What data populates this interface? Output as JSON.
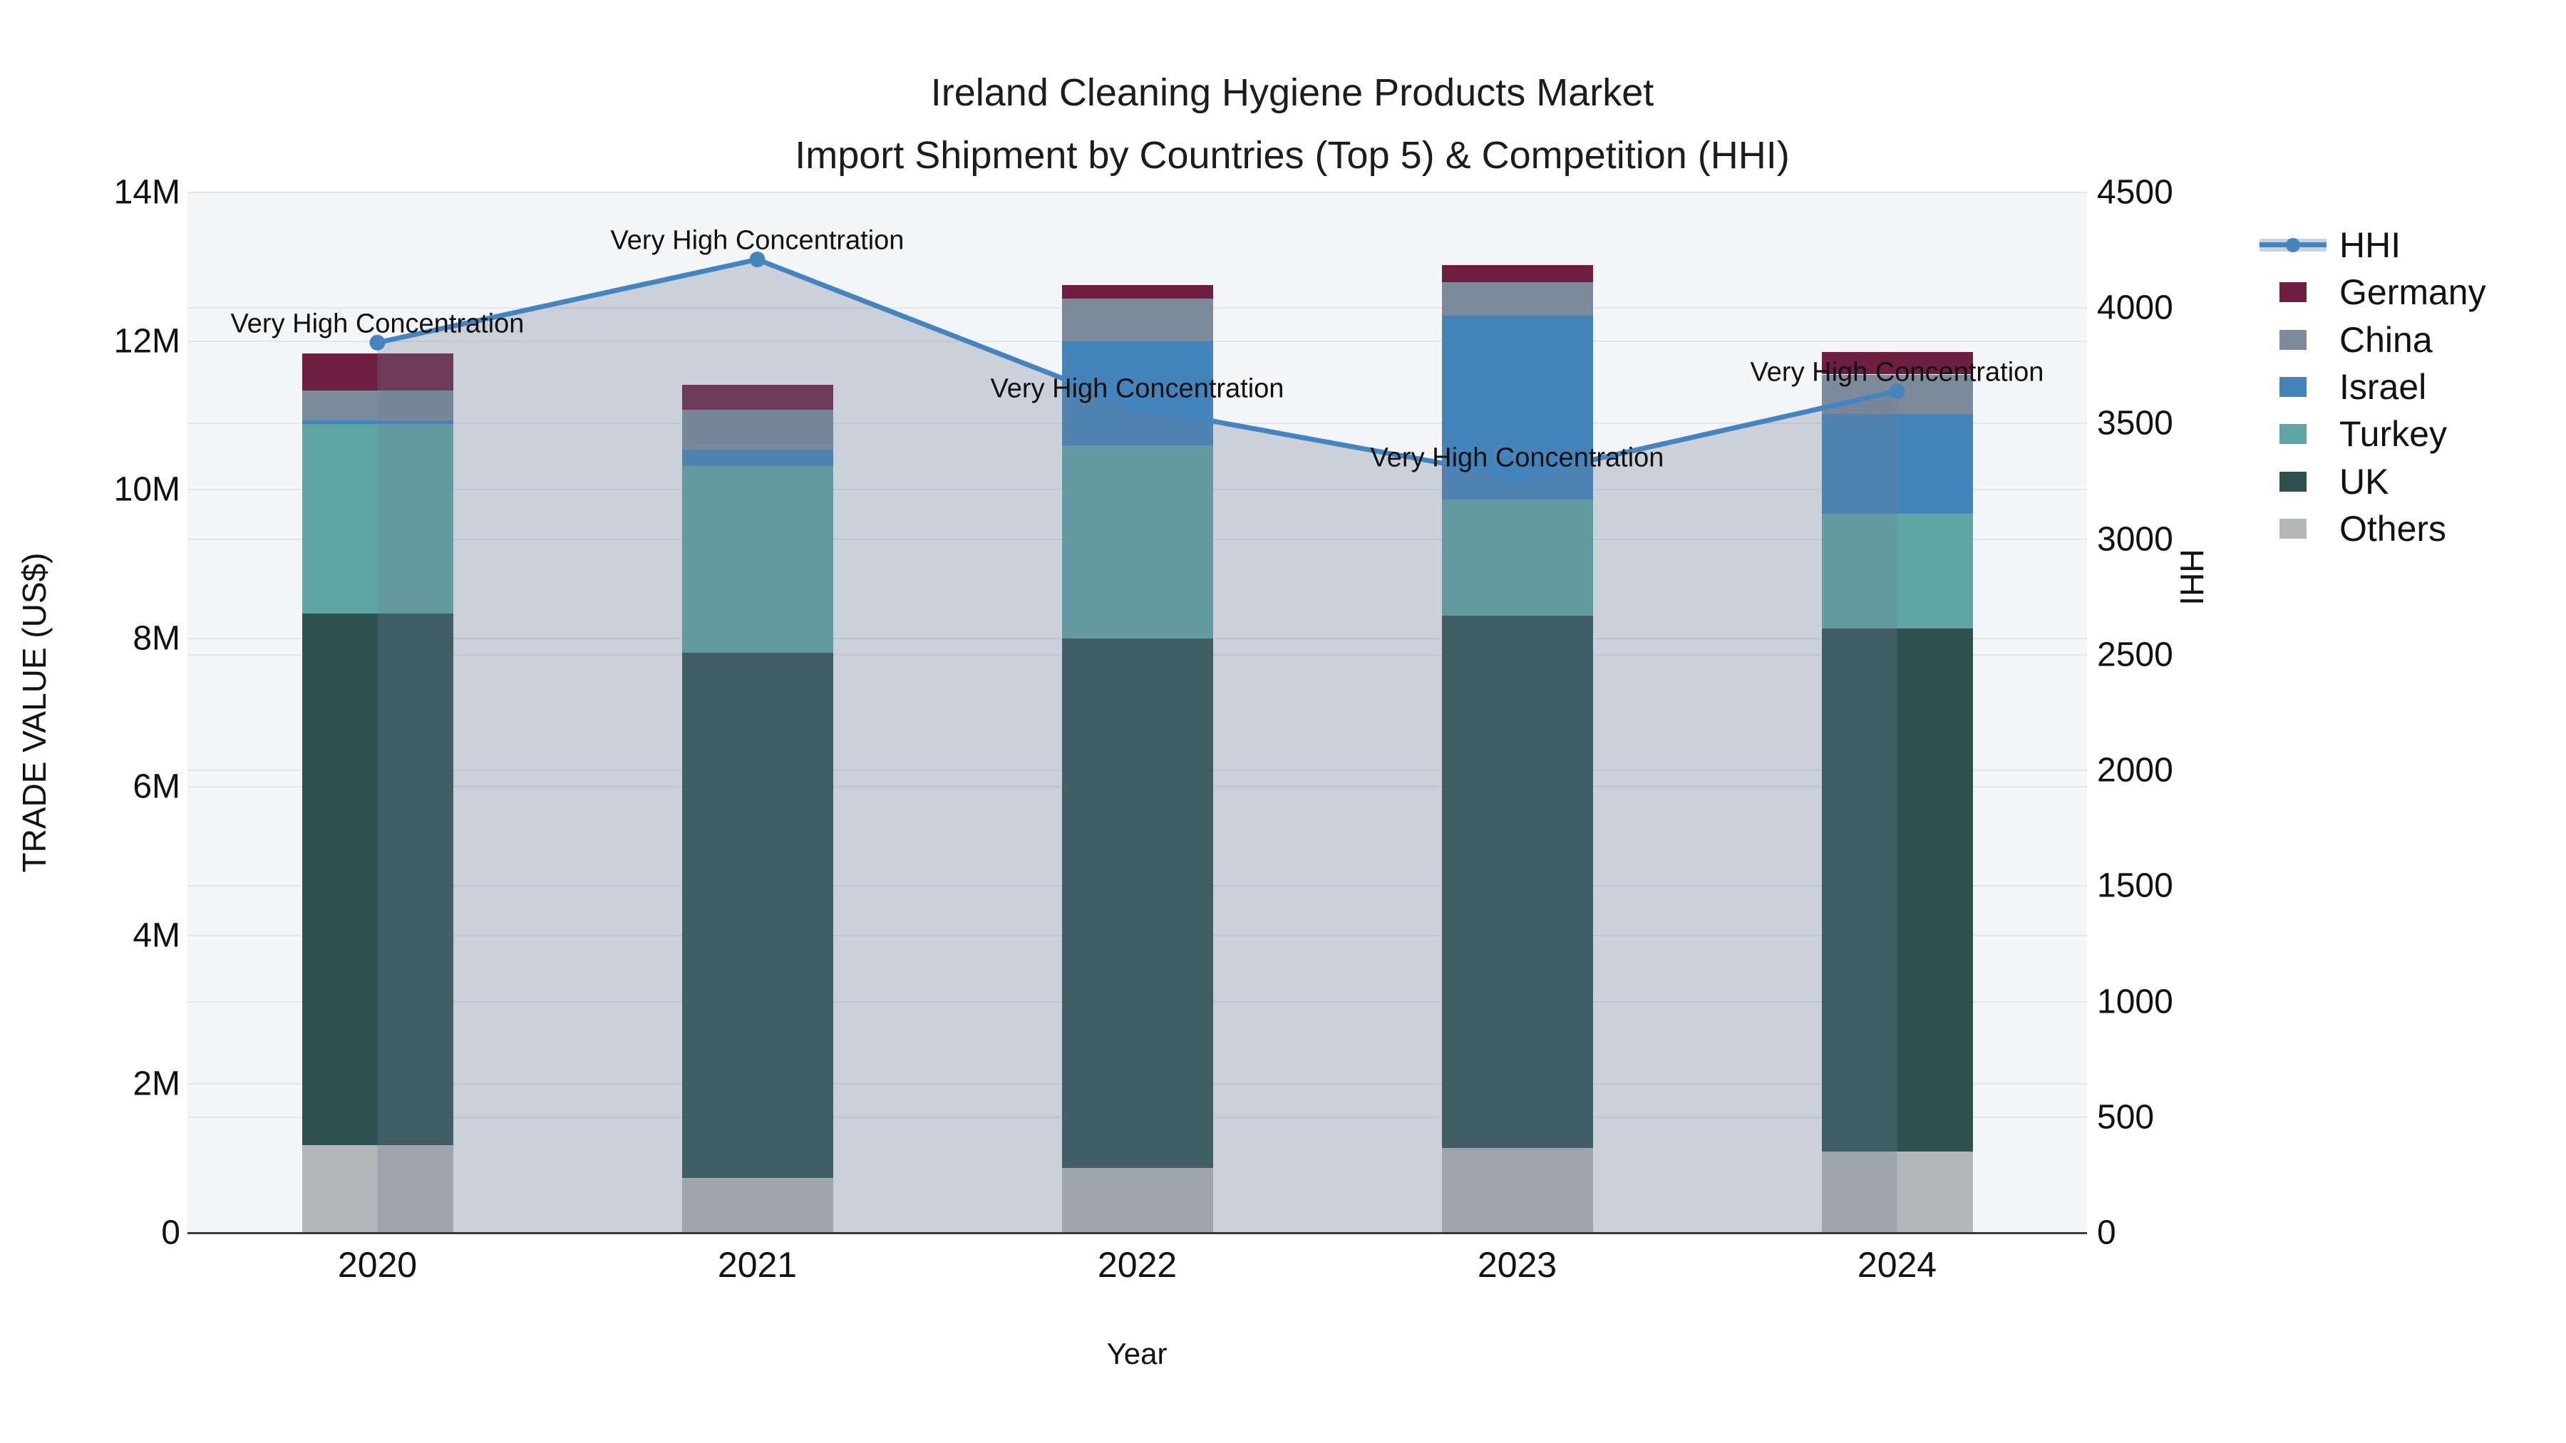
{
  "title": {
    "line1": "Ireland Cleaning Hygiene Products Market",
    "line2": "Import Shipment by Countries (Top 5) & Competition (HHI)"
  },
  "axes": {
    "x": {
      "title": "Year",
      "categories": [
        "2020",
        "2021",
        "2022",
        "2023",
        "2024"
      ]
    },
    "y_left": {
      "title": "TRADE VALUE (US$)",
      "tick_labels": [
        "0",
        "2M",
        "4M",
        "6M",
        "8M",
        "10M",
        "12M",
        "14M"
      ],
      "range_millions": [
        0,
        14
      ]
    },
    "y_right": {
      "title": "HHI",
      "tick_labels": [
        "0",
        "500",
        "1000",
        "1500",
        "2000",
        "2500",
        "3000",
        "3500",
        "4000",
        "4500"
      ],
      "range": [
        0,
        4500
      ]
    }
  },
  "legend": {
    "order": [
      "HHI",
      "Germany",
      "China",
      "Israel",
      "Turkey",
      "UK",
      "Others"
    ]
  },
  "chart_data": {
    "type": "stacked-bar+line",
    "categories": [
      "2020",
      "2021",
      "2022",
      "2023",
      "2024"
    ],
    "bar_unit": "million US$ (left axis, TRADE VALUE)",
    "series": [
      {
        "name": "Others",
        "color": "#b4b7b7",
        "values": [
          1.18,
          0.74,
          0.87,
          1.14,
          1.09
        ]
      },
      {
        "name": "UK",
        "color": "#2e504f",
        "values": [
          7.15,
          7.07,
          7.13,
          7.16,
          7.04
        ]
      },
      {
        "name": "Turkey",
        "color": "#5fa5a3",
        "values": [
          2.55,
          2.51,
          2.6,
          1.57,
          1.55
        ]
      },
      {
        "name": "Israel",
        "color": "#4484bb",
        "values": [
          0.05,
          0.22,
          1.4,
          2.47,
          1.34
        ]
      },
      {
        "name": "China",
        "color": "#7d8a99",
        "values": [
          0.4,
          0.54,
          0.57,
          0.45,
          0.53
        ]
      },
      {
        "name": "Germany",
        "color": "#6e1e3e",
        "values": [
          0.5,
          0.33,
          0.18,
          0.23,
          0.3
        ]
      }
    ],
    "line": {
      "name": "HHI",
      "axis": "right",
      "color": "#4585bf",
      "area_fill": "rgba(108,126,155,0.30)",
      "values": [
        3850,
        4210,
        3570,
        3270,
        3640
      ]
    },
    "annotations": [
      {
        "x": "2020",
        "text": "Very High Concentration"
      },
      {
        "x": "2021",
        "text": "Very High Concentration"
      },
      {
        "x": "2022",
        "text": "Very High Concentration"
      },
      {
        "x": "2023",
        "text": "Very High Concentration"
      },
      {
        "x": "2024",
        "text": "Very High Concentration"
      }
    ],
    "ylim_left_millions": [
      0,
      14
    ],
    "ylim_right": [
      0,
      4500
    ],
    "grid": true,
    "legend_position": "right"
  }
}
